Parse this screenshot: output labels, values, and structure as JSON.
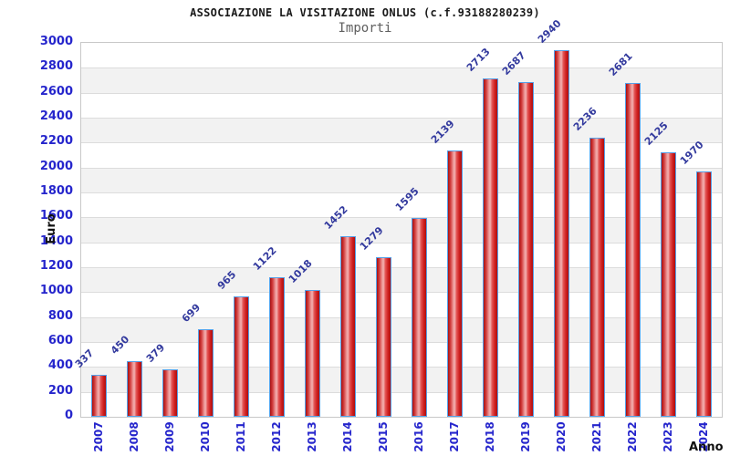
{
  "header": {
    "title": "ASSOCIAZIONE LA VISITAZIONE ONLUS (c.f.93188280239)",
    "subtitle": "Importi"
  },
  "chart_data": {
    "type": "bar",
    "title": "ASSOCIAZIONE LA VISITAZIONE ONLUS (c.f.93188280239)",
    "subtitle": "Importi",
    "categories": [
      "2007",
      "2008",
      "2009",
      "2010",
      "2011",
      "2012",
      "2013",
      "2014",
      "2015",
      "2016",
      "2017",
      "2018",
      "2019",
      "2020",
      "2021",
      "2022",
      "2023",
      "2024"
    ],
    "values": [
      337,
      450,
      379,
      699,
      965,
      1122,
      1018,
      1452,
      1279,
      1595,
      2139,
      2713,
      2687,
      2940,
      2236,
      2681,
      2125,
      1970
    ],
    "xlabel": "Anno",
    "ylabel": "Euro",
    "ylim": [
      0,
      3000
    ],
    "ytick_step": 200,
    "grid": "horizontal gridlines with alternating shaded bands",
    "legend": "none",
    "colors": {
      "bar_fill": "#d32020",
      "bar_highlight": "#f2b0b0",
      "bar_border": "#55a0e8",
      "tick_label": "#2525cc",
      "value_label": "#333a9e",
      "axis_title": "#101010",
      "band_shaded": "#f2f2f2",
      "band_plain": "#ffffff",
      "gridline": "#dcdcdc",
      "frame": "#c8c8c8",
      "title": "#1a1a1a",
      "subtitle": "#5f5f5f"
    }
  }
}
